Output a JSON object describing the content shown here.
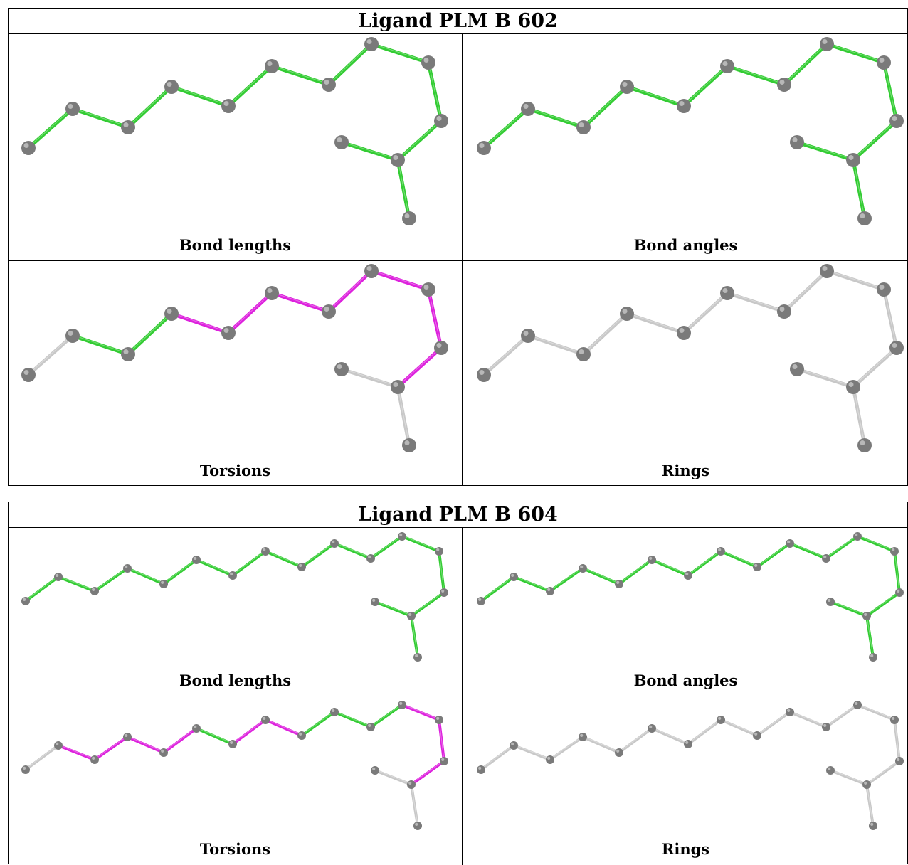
{
  "panels": [
    {
      "title": "Ligand PLM B 602",
      "cells": [
        {
          "caption": "Bond lengths"
        },
        {
          "caption": "Bond angles"
        },
        {
          "caption": "Torsions"
        },
        {
          "caption": "Rings"
        }
      ]
    },
    {
      "title": "Ligand PLM B 604",
      "cells": [
        {
          "caption": "Bond lengths"
        },
        {
          "caption": "Bond angles"
        },
        {
          "caption": "Torsions"
        },
        {
          "caption": "Rings"
        }
      ]
    }
  ],
  "colors": {
    "ok_bond": "#33cc33",
    "flagged_bond": "#dd22dd",
    "plain_bond": "#c8c8c8",
    "atom": "#7a7a7a",
    "border": "#000000"
  }
}
